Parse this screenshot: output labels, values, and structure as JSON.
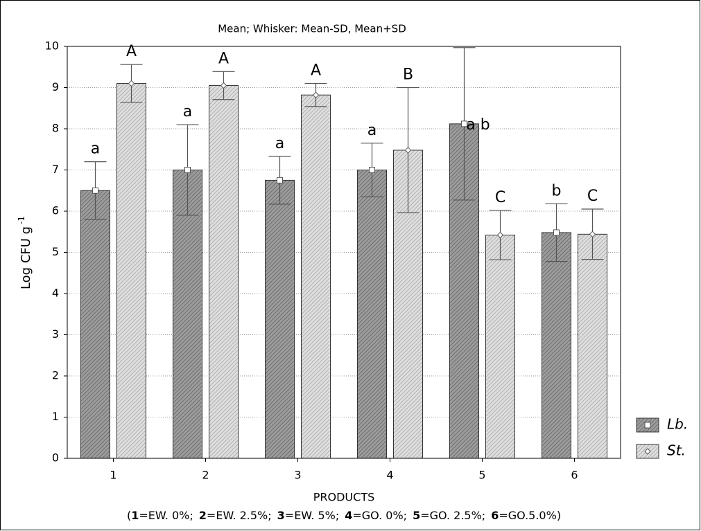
{
  "chart_data": {
    "type": "bar",
    "title": "Mean;  Whisker: Mean-SD, Mean+SD",
    "y_label": "Log CFU g",
    "y_label_sup": "-1",
    "x_label": "PRODUCTS",
    "note": {
      "open": "(",
      "close": ")",
      "items": [
        {
          "key": "1",
          "text": "=EW. 0%;"
        },
        {
          "key": "2",
          "text": "=EW. 2.5%;"
        },
        {
          "key": "3",
          "text": "=EW. 5%;"
        },
        {
          "key": "4",
          "text": "=GO. 0%;"
        },
        {
          "key": "5",
          "text": "=GO. 2.5%;"
        },
        {
          "key": "6",
          "text": "=GO.5.0%"
        }
      ]
    },
    "categories": [
      "1",
      "2",
      "3",
      "4",
      "5",
      "6"
    ],
    "series": [
      {
        "name": "Lb.",
        "color": "#9c9c9c",
        "marker": "square",
        "values": [
          6.5,
          7.0,
          6.75,
          7.0,
          8.12,
          5.48
        ],
        "errors": [
          0.7,
          1.1,
          0.58,
          0.65,
          1.85,
          0.7
        ],
        "letters": [
          "a",
          "a",
          "a",
          "a",
          "a b",
          "b"
        ]
      },
      {
        "name": "St.",
        "color": "#dedede",
        "marker": "diamond",
        "values": [
          9.1,
          9.05,
          8.82,
          7.48,
          5.42,
          5.44
        ],
        "errors": [
          0.46,
          0.34,
          0.28,
          1.52,
          0.6,
          0.61
        ],
        "letters": [
          "A",
          "A",
          "A",
          "B",
          "C",
          "C"
        ]
      }
    ],
    "ylim": [
      0,
      10
    ],
    "yticks": [
      0,
      1,
      2,
      3,
      4,
      5,
      6,
      7,
      8,
      9,
      10
    ],
    "grid": true,
    "legend": "bottom-right"
  }
}
